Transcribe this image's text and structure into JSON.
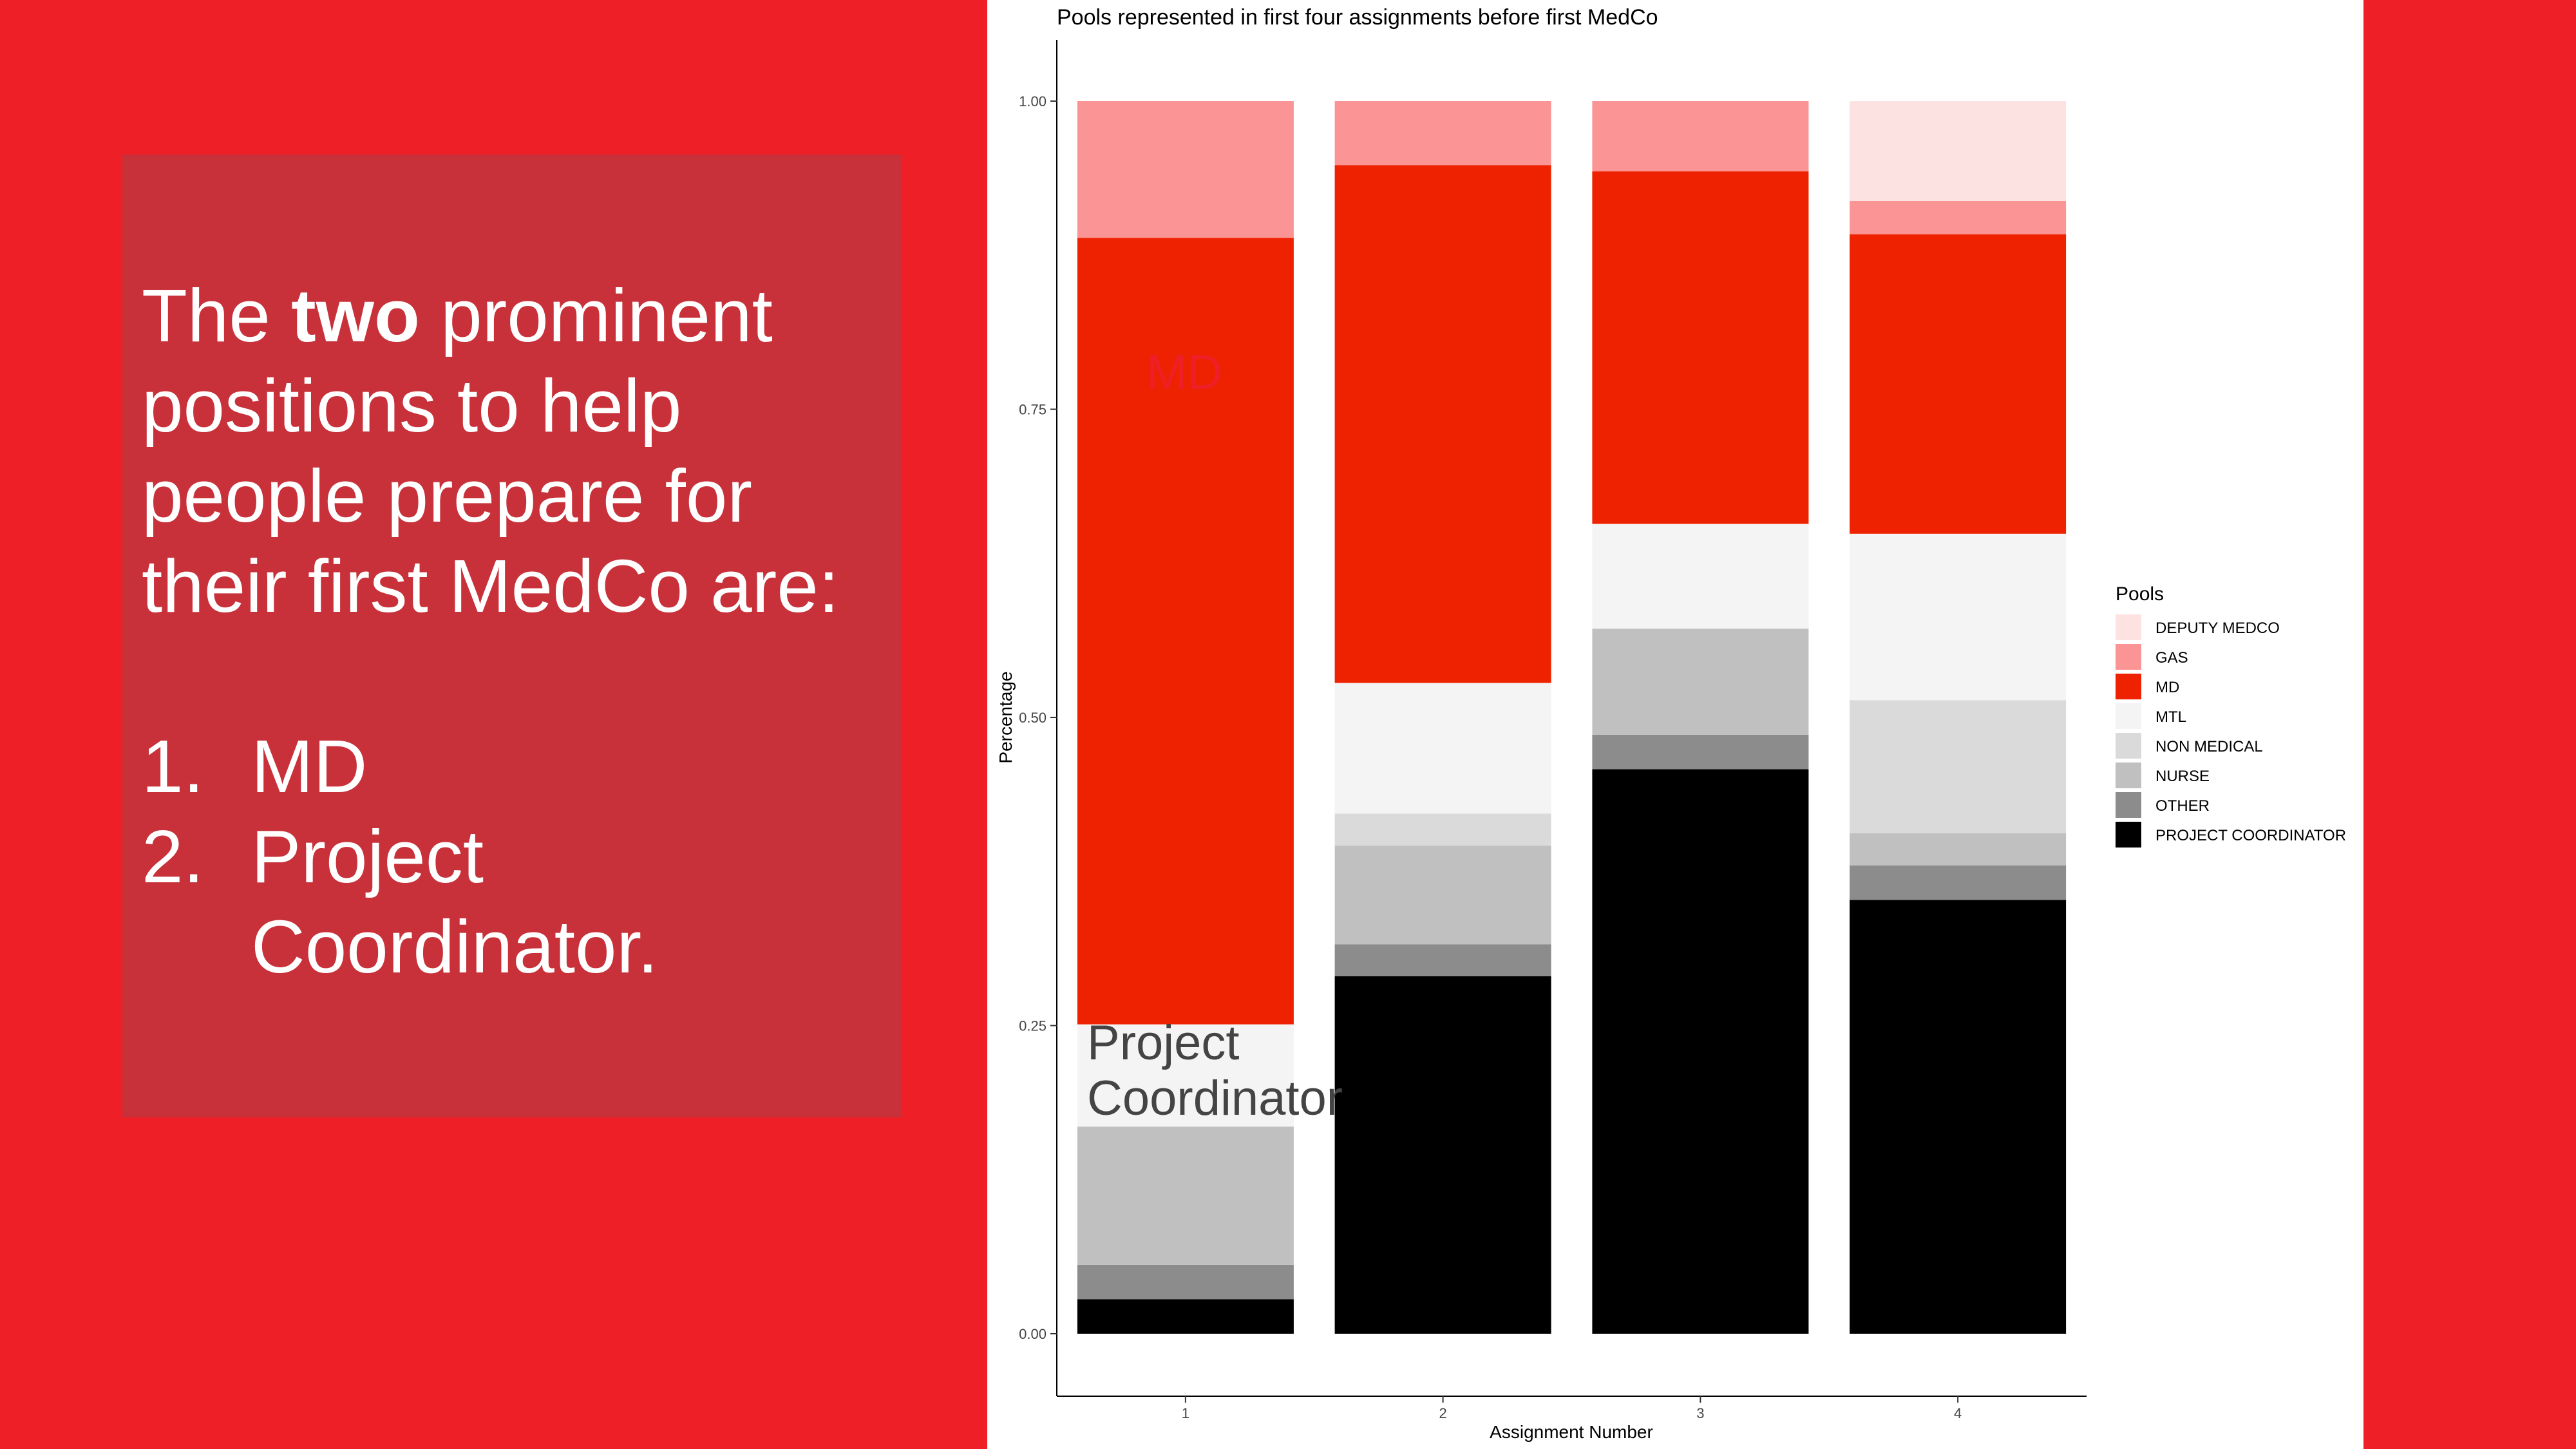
{
  "slide": {
    "intro_pre": "The ",
    "intro_bold": "two",
    "intro_post": " prominent positions to help people prepare for their first MedCo are:",
    "list": [
      {
        "number": "1.",
        "label": "MD"
      },
      {
        "number": "2.",
        "label": "Project Coordinator."
      }
    ]
  },
  "annotations": {
    "md": "MD",
    "pc_line1": "Project",
    "pc_line2": "Coordinator"
  },
  "colors": {
    "background": "#ee1f27",
    "text_panel": "#c8313a",
    "DEPUTY MEDCO": "#fde2e2",
    "GAS": "#fb9595",
    "MD": "#ee2200",
    "MTL": "#f4f4f4",
    "NON MEDICAL": "#dadada",
    "NURSE": "#c0c0c0",
    "OTHER": "#8c8c8c",
    "PROJECT COORDINATOR": "#000000"
  },
  "chart_data": {
    "type": "bar",
    "stacked": true,
    "title": "Pools represented in first four assignments before first MedCo",
    "xlabel": "Assignment Number",
    "ylabel": "Percentage",
    "ylim": [
      0,
      1
    ],
    "yticks": [
      "0.00",
      "0.25",
      "0.50",
      "0.75",
      "1.00"
    ],
    "categories": [
      "1",
      "2",
      "3",
      "4"
    ],
    "legend_title": "Pools",
    "legend_position": "right",
    "series": [
      {
        "name": "PROJECT COORDINATOR",
        "values": [
          0.028,
          0.29,
          0.458,
          0.352
        ]
      },
      {
        "name": "OTHER",
        "values": [
          0.028,
          0.026,
          0.028,
          0.028
        ]
      },
      {
        "name": "NURSE",
        "values": [
          0.112,
          0.08,
          0.086,
          0.026
        ]
      },
      {
        "name": "NON MEDICAL",
        "values": [
          0.0,
          0.026,
          0.0,
          0.108
        ]
      },
      {
        "name": "MTL",
        "values": [
          0.083,
          0.106,
          0.085,
          0.135
        ]
      },
      {
        "name": "MD",
        "values": [
          0.638,
          0.42,
          0.286,
          0.243
        ]
      },
      {
        "name": "GAS",
        "values": [
          0.111,
          0.052,
          0.057,
          0.027
        ]
      },
      {
        "name": "DEPUTY MEDCO",
        "values": [
          0.0,
          0.0,
          0.0,
          0.081
        ]
      }
    ],
    "legend_order": [
      "DEPUTY MEDCO",
      "GAS",
      "MD",
      "MTL",
      "NON MEDICAL",
      "NURSE",
      "OTHER",
      "PROJECT COORDINATOR"
    ]
  }
}
